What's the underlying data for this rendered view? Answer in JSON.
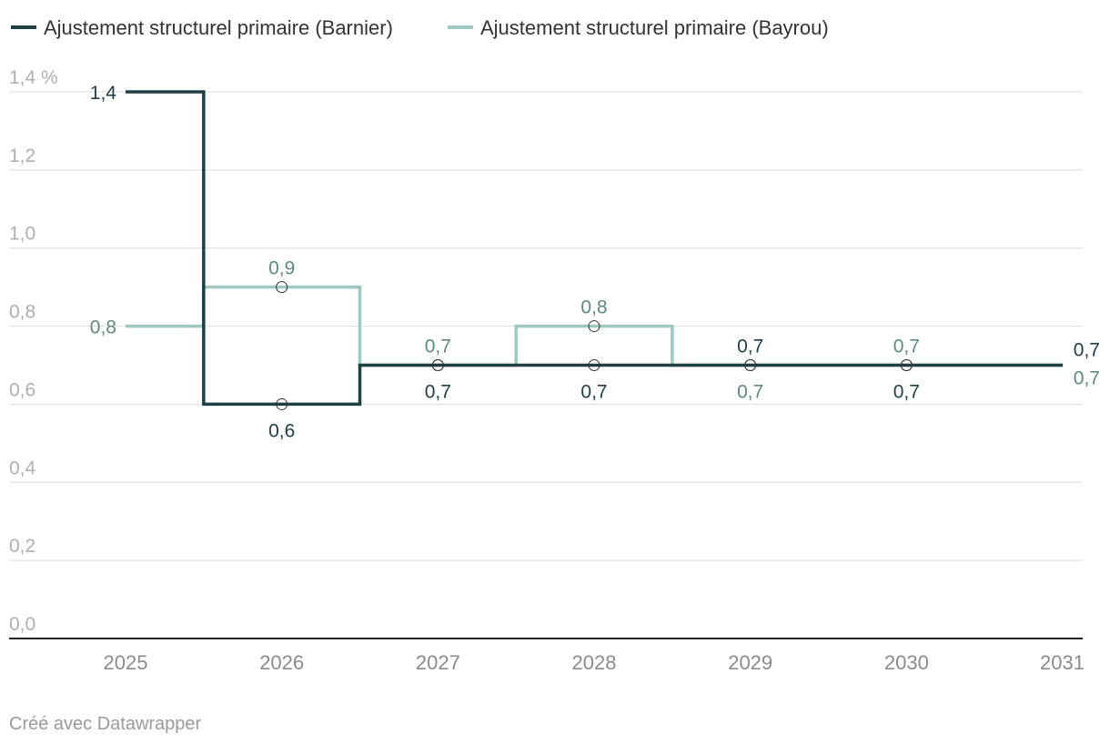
{
  "chart_data": {
    "type": "line",
    "step": true,
    "y_unit": "%",
    "x": [
      "2025",
      "2026",
      "2027",
      "2028",
      "2029",
      "2030",
      "2031"
    ],
    "yticks": [
      "0,0",
      "0,2",
      "0,4",
      "0,6",
      "0,8",
      "1,0",
      "1,2",
      "1,4 %"
    ],
    "ylim": [
      0,
      1.4
    ],
    "grid": true,
    "legend_position": "top-left",
    "series": [
      {
        "name": "Ajustement structurel primaire (Barnier)",
        "values": [
          1.4,
          0.6,
          0.7,
          0.7,
          0.7,
          0.7,
          0.7
        ],
        "labels": [
          "1,4",
          "0,6",
          "0,7",
          "0,7",
          "0,7",
          "0,7",
          "0,7"
        ],
        "color": "#1f3f44"
      },
      {
        "name": "Ajustement structurel primaire (Bayrou)",
        "values": [
          0.8,
          0.9,
          0.7,
          0.8,
          0.7,
          0.7,
          0.7
        ],
        "labels": [
          "0,8",
          "0,9",
          "0,7",
          "0,8",
          "0,7",
          "0,7",
          "0,7"
        ],
        "color": "#9fc8c0",
        "label_color": "#5f8a80"
      }
    ]
  },
  "footer": "Créé avec Datawrapper"
}
